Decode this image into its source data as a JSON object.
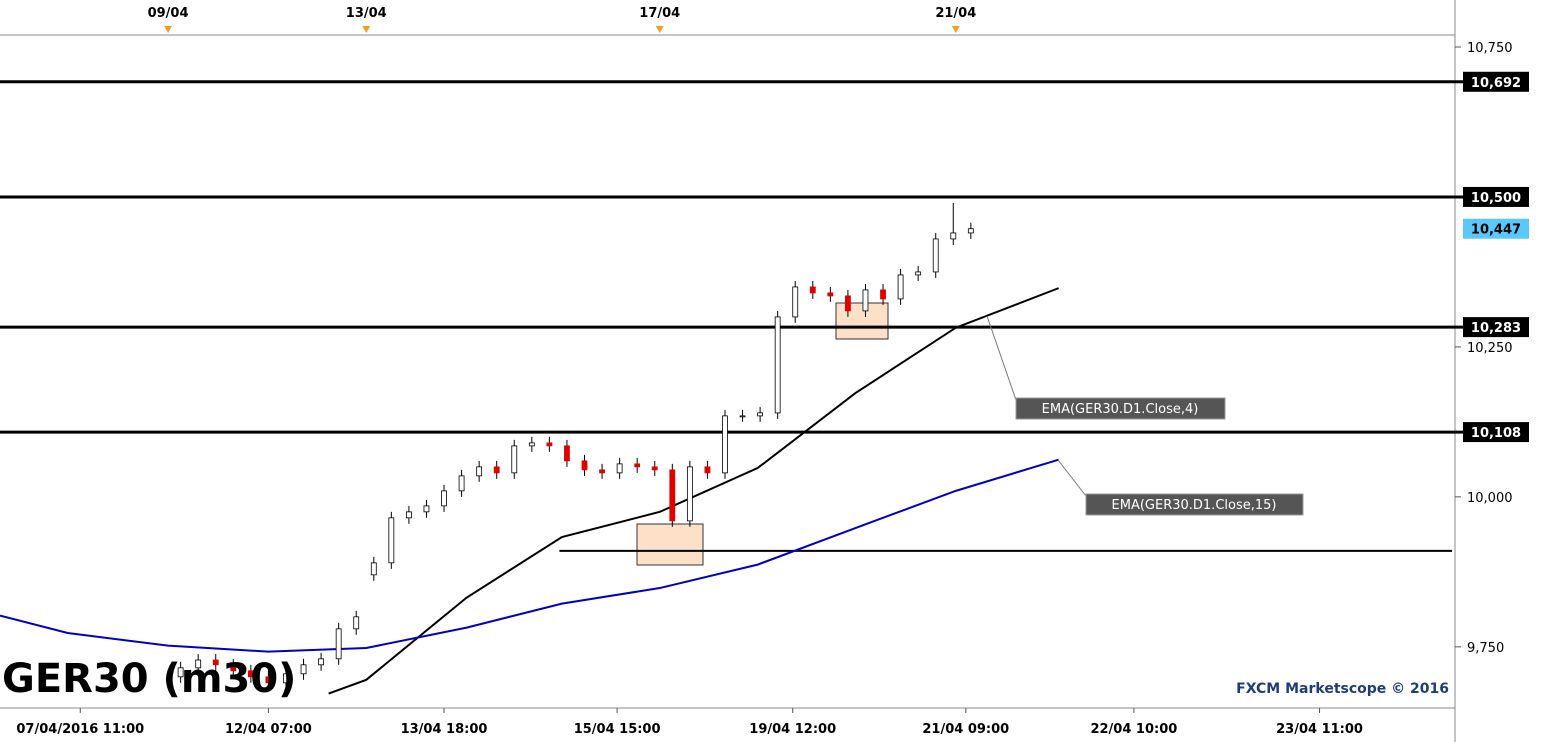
{
  "chart_data": {
    "type": "candlestick",
    "title": "GER30 (m30)",
    "watermark": "FXCM Marketscope © 2016",
    "xlim": [
      0,
      580
    ],
    "ylim": [
      9648,
      10770
    ],
    "yticks": [
      {
        "value": 9750,
        "label": "9,750"
      },
      {
        "value": 10000,
        "label": "10,000"
      },
      {
        "value": 10250,
        "label": "10,250"
      },
      {
        "value": 10750,
        "label": "10,750"
      }
    ],
    "xticks": [
      {
        "value": 32,
        "label": "07/04/2016 11:00"
      },
      {
        "value": 107,
        "label": "12/04 07:00"
      },
      {
        "value": 177,
        "label": "13/04 18:00"
      },
      {
        "value": 246,
        "label": "15/04 15:00"
      },
      {
        "value": 316,
        "label": "19/04 12:00"
      },
      {
        "value": 385,
        "label": "21/04 09:00"
      },
      {
        "value": 452,
        "label": "22/04 10:00"
      },
      {
        "value": 526,
        "label": "23/04 11:00"
      }
    ],
    "top_xticks": [
      {
        "value": 67,
        "label": "09/04"
      },
      {
        "value": 146,
        "label": "13/04"
      },
      {
        "value": 263,
        "label": "17/04"
      },
      {
        "value": 381,
        "label": "21/04"
      }
    ],
    "x": [
      72,
      79,
      86,
      93,
      100,
      107,
      114,
      121,
      128,
      135,
      142,
      149,
      156,
      163,
      170,
      177,
      184,
      191,
      198,
      205,
      212,
      219,
      226,
      233,
      240,
      247,
      254,
      261,
      268,
      275,
      282,
      289,
      296,
      303,
      310,
      317,
      324,
      331,
      338,
      345,
      352,
      359,
      366,
      373,
      380,
      387
    ],
    "open": [
      9700,
      9715,
      9728,
      9720,
      9710,
      9700,
      9690,
      9705,
      9720,
      9730,
      9780,
      9870,
      9890,
      9965,
      9975,
      9985,
      10010,
      10035,
      10050,
      10040,
      10085,
      10090,
      10085,
      10060,
      10045,
      10040,
      10055,
      10050,
      10045,
      9960,
      10050,
      10040,
      10135,
      10135,
      10140,
      10300,
      10350,
      10340,
      10335,
      10310,
      10345,
      10330,
      10370,
      10375,
      10430,
      10440
    ],
    "high": [
      9725,
      9738,
      9738,
      9730,
      9720,
      9710,
      9715,
      9730,
      9740,
      9790,
      9810,
      9900,
      9975,
      9985,
      9995,
      10020,
      10045,
      10060,
      10060,
      10095,
      10100,
      10100,
      10095,
      10070,
      10055,
      10065,
      10065,
      10060,
      10055,
      10060,
      10060,
      10145,
      10145,
      10150,
      10310,
      10360,
      10360,
      10350,
      10345,
      10355,
      10355,
      10380,
      10385,
      10440,
      10490,
      10457
    ],
    "low": [
      9690,
      9705,
      9710,
      9700,
      9690,
      9680,
      9680,
      9695,
      9710,
      9720,
      9770,
      9860,
      9880,
      9955,
      9965,
      9975,
      10000,
      10025,
      10030,
      10030,
      10075,
      10075,
      10050,
      10035,
      10030,
      10030,
      10040,
      10035,
      9950,
      9950,
      10030,
      10030,
      10125,
      10125,
      10130,
      10290,
      10330,
      10325,
      10300,
      10300,
      10320,
      10320,
      10360,
      10365,
      10420,
      10430
    ],
    "close": [
      9715,
      9728,
      9720,
      9710,
      9700,
      9690,
      9705,
      9720,
      9730,
      9780,
      9800,
      9890,
      9965,
      9975,
      9985,
      10010,
      10035,
      10050,
      10040,
      10085,
      10090,
      10085,
      10060,
      10045,
      10040,
      10055,
      10050,
      10045,
      9960,
      10050,
      10040,
      10135,
      10135,
      10140,
      10300,
      10350,
      10340,
      10335,
      10310,
      10345,
      10330,
      10370,
      10375,
      10430,
      10440,
      10447
    ],
    "up_color": "#ffffff",
    "down_color": "#e00000",
    "levels": [
      {
        "value": 10692,
        "label": "10,692"
      },
      {
        "value": 10500,
        "label": "10,500"
      },
      {
        "value": 10283,
        "label": "10,283"
      },
      {
        "value": 10108,
        "label": "10,108"
      }
    ],
    "short_level": {
      "value": 9910,
      "x_start": 223
    },
    "last_price": {
      "value": 10447,
      "label": "10,447"
    },
    "series": [
      {
        "name": "EMA(GER30.D1.Close,4)",
        "color": "#000000",
        "x": [
          131,
          146,
          186,
          224,
          263,
          302,
          341,
          381,
          422
        ],
        "values": [
          9672,
          9695,
          9832,
          9933,
          9975,
          10048,
          10173,
          10282,
          10348
        ]
      },
      {
        "name": "EMA(GER30.D1.Close,15)",
        "color": "#0000c0",
        "x": [
          0,
          27,
          67,
          107,
          146,
          186,
          224,
          263,
          302,
          341,
          381,
          422
        ],
        "values": [
          9802,
          9773,
          9752,
          9742,
          9748,
          9782,
          9822,
          9848,
          9887,
          9948,
          10010,
          10062
        ]
      }
    ]
  }
}
